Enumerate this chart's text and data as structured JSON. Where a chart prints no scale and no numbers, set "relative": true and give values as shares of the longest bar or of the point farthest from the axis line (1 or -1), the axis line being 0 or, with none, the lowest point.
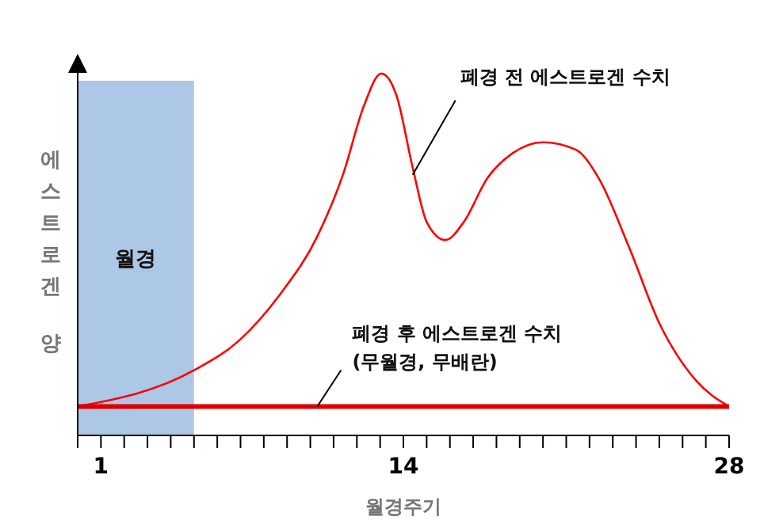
{
  "chart_data": {
    "type": "line",
    "relative": true,
    "xlabel": "월경주기",
    "ylabel": "에스트로겐 양",
    "xlim": [
      0,
      28
    ],
    "xticks": [
      {
        "value": 0,
        "label": null
      },
      1,
      {
        "value": 2,
        "label": null
      },
      {
        "value": 3,
        "label": null
      },
      {
        "value": 4,
        "label": null
      },
      {
        "value": 5,
        "label": null
      },
      {
        "value": 6,
        "label": null
      },
      {
        "value": 7,
        "label": null
      },
      {
        "value": 8,
        "label": null
      },
      {
        "value": 9,
        "label": null
      },
      {
        "value": 10,
        "label": null
      },
      {
        "value": 11,
        "label": null
      },
      {
        "value": 12,
        "label": null
      },
      {
        "value": 13,
        "label": null
      },
      14,
      {
        "value": 15,
        "label": null
      },
      {
        "value": 16,
        "label": null
      },
      {
        "value": 17,
        "label": null
      },
      {
        "value": 18,
        "label": null
      },
      {
        "value": 19,
        "label": null
      },
      {
        "value": 20,
        "label": null
      },
      {
        "value": 21,
        "label": null
      },
      {
        "value": 22,
        "label": null
      },
      {
        "value": 23,
        "label": null
      },
      {
        "value": 24,
        "label": null
      },
      {
        "value": 25,
        "label": null
      },
      {
        "value": 26,
        "label": null
      },
      {
        "value": 27,
        "label": null
      },
      28
    ],
    "series": [
      {
        "color": "#ff0000",
        "x": [
          0,
          5,
          6.9,
          8.7,
          10.3,
          11.4,
          12.3,
          13.05,
          13.7,
          14.4,
          15.0,
          15.8,
          16.6,
          17.6,
          18.7,
          20.0,
          21.4,
          22.4,
          23.7,
          25.0,
          26.6,
          28
        ],
        "values": [
          0.08,
          0.18,
          0.26,
          0.39,
          0.55,
          0.72,
          0.91,
          1,
          0.94,
          0.74,
          0.59,
          0.54,
          0.59,
          0.71,
          0.78,
          0.81,
          0.79,
          0.71,
          0.52,
          0.31,
          0.15,
          0.08
        ]
      },
      {
        "color": "#dd0000",
        "x": [
          0,
          28
        ],
        "values": [
          0.08,
          0.08
        ]
      }
    ],
    "bands": [
      {
        "axis": "x",
        "from": 0,
        "to": 5,
        "label": "월경",
        "color": "#adc8e6"
      }
    ],
    "annotations": [
      {
        "text": "폐경 전 에스트로겐 수치",
        "x": 14.4,
        "y": 0.72
      },
      {
        "text": "폐경 후 에스트로겐 수치\n(무월경, 무배란)",
        "x": 10.3,
        "y": 0.08
      }
    ],
    "marker": "none",
    "line_style": "solid"
  }
}
